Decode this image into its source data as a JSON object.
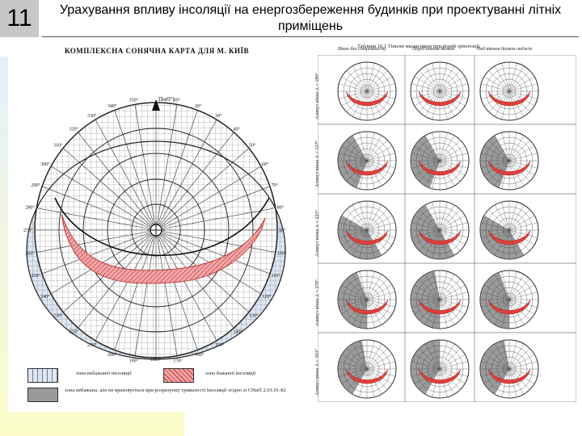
{
  "slide": {
    "number": "11",
    "title": "Урахування впливу інсоляції на енергозбереження будинків при проектуванні літніх приміщень"
  },
  "main_chart": {
    "title": "КОМПЛЕКСНА СОНЯЧНА КАРТА ДЛЯ М. КИЇВ",
    "top_label": "Пн(0°)",
    "bottom_label": "180°",
    "azimuth_labels": [
      "10°",
      "20°",
      "30°",
      "40°",
      "50°",
      "60°",
      "70°",
      "80°",
      "90°",
      "100°",
      "110°",
      "120°",
      "130°",
      "140°",
      "150°",
      "160°",
      "170°",
      "190°",
      "200°",
      "210°",
      "220°",
      "230°",
      "240°",
      "250°",
      "260°",
      "270°",
      "280°",
      "290°",
      "300°",
      "310°",
      "320°",
      "330°",
      "340°",
      "350°"
    ]
  },
  "legend": {
    "items": [
      {
        "label": "зона небажаної інсоляції",
        "swatch": "hatched-blue"
      },
      {
        "label": "зона бажаної інсоляції",
        "swatch": "hatched-red"
      },
      {
        "label": "зона небажана, але не враховується при розрахунку тривалості інсоляції згідно зі СНиП 2.01.01-82",
        "swatch": "grey"
      }
    ]
  },
  "table": {
    "caption": "Таблиця 10.1  Тіньові маски вікон при різній орієнтації",
    "columns": [
      "Вікно без сонцезахисту",
      "Перед вікном балкон",
      "Над вікном балкон-лоджія"
    ],
    "rows": [
      "Азимут вікна А = 180°",
      "Азимут вікна А = 157°",
      "Азимут вікна А = 225°",
      "Азимут вікна А = 270°",
      "Азимут вікна А = 303°"
    ]
  },
  "colors": {
    "desired_zone": "#e0403a",
    "undesired_zone": "#c8d8ea",
    "shadow_mask": "#8a8a8a",
    "grid_line": "#333333"
  }
}
